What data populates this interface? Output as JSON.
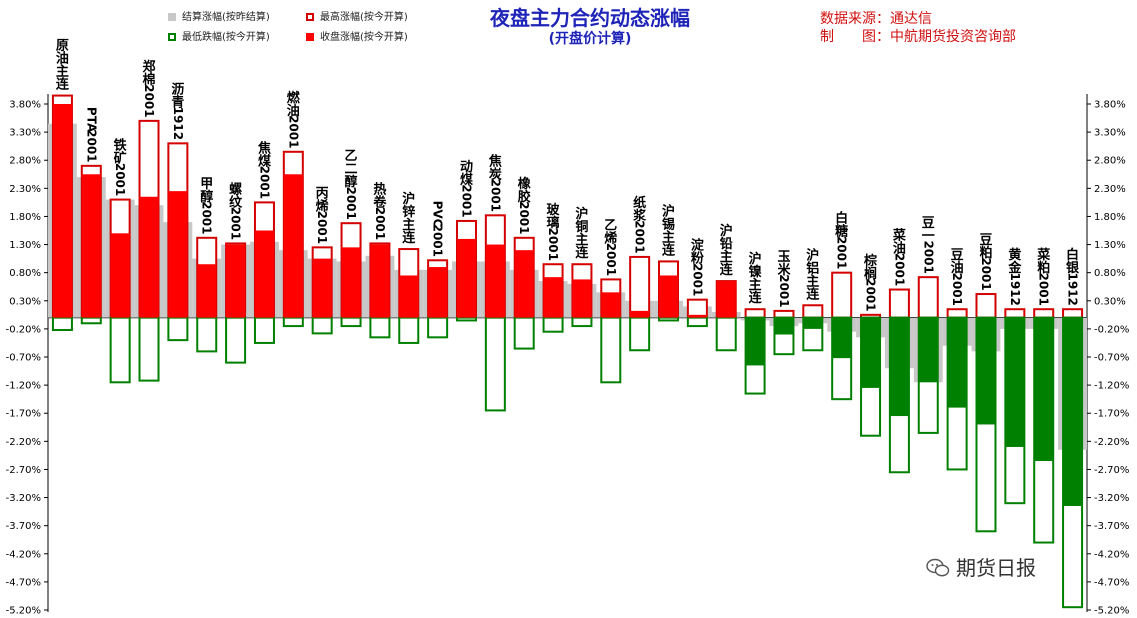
{
  "header": {
    "title": "夜盘主力合约动态涨幅",
    "subtitle": "(开盘价计算)",
    "source": "数据来源：通达信",
    "maker": "制　　图：中航期货投资咨询部",
    "watermark": "期货日报"
  },
  "legend": {
    "settle": "结算涨幅(按昨结算)",
    "high": "最高涨幅(按今开算)",
    "low": "最低跌幅(按今开算)",
    "close": "收盘涨幅(按今开算)"
  },
  "colors": {
    "up": "#ff0000",
    "up_outline": "#d40000",
    "down": "#008000",
    "down_outline": "#008000",
    "settle": "#c8c8c8",
    "title": "#1f24b8",
    "source": "#d01010"
  },
  "chart_data": {
    "type": "bar",
    "title": "夜盘主力合约动态涨幅",
    "subtitle": "(开盘价计算)",
    "ylim": [
      -5.2,
      4.0
    ],
    "yticks": [
      3.8,
      3.3,
      2.8,
      2.3,
      1.8,
      1.3,
      0.8,
      0.3,
      -0.2,
      -0.7,
      -1.2,
      -1.7,
      -2.2,
      -2.7,
      -3.2,
      -3.7,
      -4.2,
      -4.7,
      -5.2
    ],
    "ytick_labels": [
      "3.80%",
      "3.30%",
      "2.80%",
      "2.30%",
      "1.80%",
      "1.30%",
      "0.80%",
      "0.30%",
      "-0.20%",
      "-0.70%",
      "-1.20%",
      "-1.70%",
      "-2.20%",
      "-2.70%",
      "-3.20%",
      "-3.70%",
      "-4.20%",
      "-4.70%",
      "-5.20%"
    ],
    "categories": [
      "原油主连",
      "PTA2001",
      "铁矿2001",
      "郑棉2001",
      "沥青1912",
      "甲醇2001",
      "螺纹2001",
      "焦煤2001",
      "燃油2001",
      "丙烯2001",
      "乙二醇2001",
      "热卷2001",
      "沪锌主连",
      "PVC2001",
      "动煤2001",
      "焦炭2001",
      "橡胶2001",
      "玻璃2001",
      "沪铜主连",
      "乙烯2001",
      "纸浆2001",
      "沪锡主连",
      "淀粉2001",
      "沪铅主连",
      "沪镍主连",
      "玉米2001",
      "沪铝主连",
      "白糖2001",
      "棕榈2001",
      "菜油2001",
      "豆一2001",
      "豆油2001",
      "豆粕2001",
      "黄金1912",
      "菜粕2001",
      "白银1912"
    ],
    "series": [
      {
        "name": "结算涨幅(按昨结算)",
        "values": [
          3.45,
          2.5,
          2.1,
          2.0,
          1.7,
          1.05,
          1.3,
          1.35,
          1.2,
          1.05,
          1.0,
          1.1,
          0.85,
          0.85,
          1.0,
          1.0,
          0.85,
          0.65,
          0.6,
          0.45,
          0.3,
          0.3,
          0.2,
          0.1,
          -0.05,
          -0.15,
          -0.1,
          -0.25,
          -0.35,
          -0.9,
          -1.15,
          -0.5,
          -0.6,
          -0.2,
          -0.2,
          -2.35
        ]
      },
      {
        "name": "最高涨幅(按今开算)",
        "values": [
          3.95,
          2.7,
          2.1,
          3.5,
          3.1,
          1.42,
          1.32,
          2.05,
          2.95,
          1.25,
          1.68,
          1.32,
          1.22,
          1.02,
          1.72,
          1.82,
          1.42,
          0.95,
          0.95,
          0.68,
          1.08,
          1.0,
          0.32,
          0.65,
          0.15,
          0.12,
          0.22,
          0.8,
          0.05,
          0.5,
          0.72,
          0.15,
          0.42,
          0.15,
          0.15,
          0.15
        ]
      },
      {
        "name": "最低跌幅(按今开算)",
        "values": [
          -0.22,
          -0.1,
          -1.15,
          -1.12,
          -0.4,
          -0.6,
          -0.8,
          -0.45,
          -0.15,
          -0.28,
          -0.15,
          -0.35,
          -0.45,
          -0.35,
          -0.05,
          -1.65,
          -0.55,
          -0.25,
          -0.15,
          -1.15,
          -0.58,
          -0.05,
          -0.15,
          -0.58,
          -1.35,
          -0.65,
          -0.58,
          -1.45,
          -2.1,
          -2.75,
          -2.05,
          -2.7,
          -3.8,
          -3.3,
          -4.0,
          -5.15
        ]
      },
      {
        "name": "收盘涨幅(按今开算)",
        "values": [
          3.8,
          2.55,
          1.5,
          2.15,
          2.25,
          0.95,
          1.3,
          1.55,
          2.55,
          1.05,
          1.25,
          1.3,
          0.75,
          0.9,
          1.4,
          1.3,
          1.2,
          0.72,
          0.68,
          0.45,
          0.12,
          0.75,
          0.05,
          0.65,
          -0.85,
          -0.3,
          -0.2,
          -0.72,
          -1.25,
          -1.75,
          -1.15,
          -1.6,
          -1.9,
          -2.3,
          -2.55,
          -3.35
        ]
      }
    ]
  }
}
